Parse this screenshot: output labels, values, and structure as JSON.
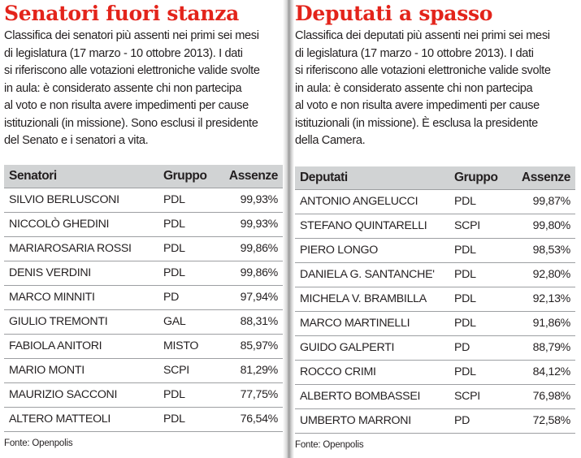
{
  "senators": {
    "title": "Senatori fuori stanza",
    "intro_lines": [
      "Classifica dei senatori più assenti nei primi sei mesi",
      "di legislatura (17 marzo - 10 ottobre 2013). I dati",
      "si riferiscono alle votazioni elettroniche valide svolte",
      "in aula: è considerato assente chi non partecipa",
      "al voto e non risulta avere impedimenti per cause",
      "istituzionali (in missione). Sono esclusi il presidente",
      "del Senato e i senatori a vita."
    ],
    "headers": {
      "name": "Senatori",
      "group": "Gruppo",
      "absences": "Assenze"
    },
    "rows": [
      {
        "name": "SILVIO BERLUSCONI",
        "group": "PDL",
        "absences": "99,93%"
      },
      {
        "name": "NICCOLÒ GHEDINI",
        "group": "PDL",
        "absences": "99,93%"
      },
      {
        "name": "MARIAROSARIA ROSSI",
        "group": "PDL",
        "absences": "99,86%"
      },
      {
        "name": "DENIS VERDINI",
        "group": "PDL",
        "absences": "99,86%"
      },
      {
        "name": "MARCO MINNITI",
        "group": "PD",
        "absences": "97,94%"
      },
      {
        "name": "GIULIO TREMONTI",
        "group": "GAL",
        "absences": "88,31%"
      },
      {
        "name": "FABIOLA ANITORI",
        "group": "MISTO",
        "absences": "85,97%"
      },
      {
        "name": "MARIO MONTI",
        "group": "SCPI",
        "absences": "81,29%"
      },
      {
        "name": "MAURIZIO SACCONI",
        "group": "PDL",
        "absences": "77,75%"
      },
      {
        "name": "ALTERO MATTEOLI",
        "group": "PDL",
        "absences": "76,54%"
      }
    ],
    "source": "Fonte: Openpolis"
  },
  "deputies": {
    "title": "Deputati a spasso",
    "intro_lines": [
      "Classifica dei deputati più assenti nei primi sei mesi",
      "di legislatura (17 marzo - 10 ottobre 2013). I dati",
      "si riferiscono alle votazioni elettroniche valide svolte",
      "in aula: è considerato assente chi non partecipa",
      "al voto e non risulta avere impedimenti per cause",
      "istituzionali (in missione). È esclusa la presidente",
      "della Camera."
    ],
    "headers": {
      "name": "Deputati",
      "group": "Gruppo",
      "absences": "Assenze"
    },
    "rows": [
      {
        "name": "ANTONIO ANGELUCCI",
        "group": "PDL",
        "absences": "99,87%"
      },
      {
        "name": "STEFANO QUINTARELLI",
        "group": "SCPI",
        "absences": "99,80%"
      },
      {
        "name": "PIERO LONGO",
        "group": "PDL",
        "absences": "98,53%"
      },
      {
        "name": "DANIELA G. SANTANCHE'",
        "group": "PDL",
        "absences": "92,80%"
      },
      {
        "name": "MICHELA V. BRAMBILLA",
        "group": "PDL",
        "absences": "92,13%"
      },
      {
        "name": "MARCO MARTINELLI",
        "group": "PDL",
        "absences": "91,86%"
      },
      {
        "name": "GUIDO GALPERTI",
        "group": "PD",
        "absences": "88,79%"
      },
      {
        "name": "ROCCO CRIMI",
        "group": "PDL",
        "absences": "84,12%"
      },
      {
        "name": "ALBERTO BOMBASSEI",
        "group": "SCPI",
        "absences": "76,98%"
      },
      {
        "name": "UMBERTO MARRONI",
        "group": "PD",
        "absences": "72,58%"
      }
    ],
    "source": "Fonte: Openpolis"
  },
  "colors": {
    "title_red": "#e3241b",
    "header_gray": "#d1d3d4",
    "rule_gray": "#9d9fa2",
    "text": "#231f20"
  }
}
